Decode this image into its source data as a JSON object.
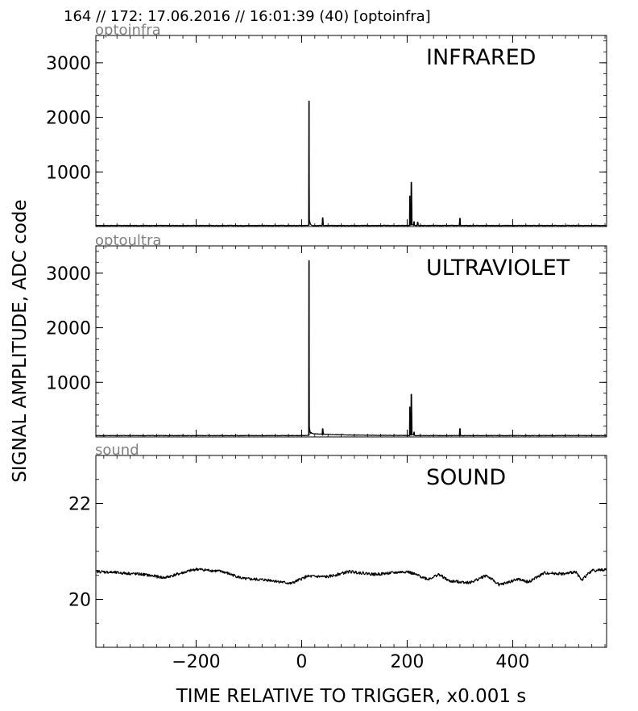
{
  "figure": {
    "title": "164 // 172:   17.06.2016 // 16:01:39 (40)  [optoinfra]",
    "xlabel": "TIME RELATIVE TO TRIGGER,   x0.001 s",
    "ylabel": "SIGNAL AMPLITUDE,  ADC code"
  },
  "chart_data": [
    {
      "type": "line",
      "panel_label": "INFRARED",
      "channel_label": "optoinfra",
      "xlim": [
        -390,
        578
      ],
      "ylim": [
        0,
        3500
      ],
      "x_ticks": [
        -200,
        0,
        200,
        400
      ],
      "x_tick_labels": [
        "",
        "",
        "",
        ""
      ],
      "y_ticks": [
        1000,
        2000,
        3000
      ],
      "y_tick_labels": [
        "1000",
        "2000",
        "3000"
      ],
      "baseline": 20,
      "noise": 4,
      "spikes": [
        {
          "x": 14,
          "peak": 2300,
          "decay": 1.5
        },
        {
          "x": 40,
          "peak": 160,
          "decay": 1.0
        },
        {
          "x": 205,
          "peak": 560,
          "decay": 1.0
        },
        {
          "x": 208,
          "peak": 810,
          "decay": 1.8
        },
        {
          "x": 213,
          "peak": 90,
          "decay": 1.0
        },
        {
          "x": 220,
          "peak": 80,
          "decay": 1.0
        },
        {
          "x": 300,
          "peak": 150,
          "decay": 1.0
        }
      ]
    },
    {
      "type": "line",
      "panel_label": "ULTRAVIOLET",
      "channel_label": "optoultra",
      "xlim": [
        -390,
        578
      ],
      "ylim": [
        0,
        3500
      ],
      "x_ticks": [
        -200,
        0,
        200,
        400
      ],
      "x_tick_labels": [
        "",
        "",
        "",
        ""
      ],
      "y_ticks": [
        1000,
        2000,
        3000
      ],
      "y_tick_labels": [
        "1000",
        "2000",
        "3000"
      ],
      "baseline": 25,
      "noise": 4,
      "spikes": [
        {
          "x": 14,
          "peak": 3230,
          "decay": 1.6
        },
        {
          "x": 40,
          "peak": 150,
          "decay": 1.2
        },
        {
          "x": 205,
          "peak": 550,
          "decay": 1.0
        },
        {
          "x": 208,
          "peak": 780,
          "decay": 1.8
        },
        {
          "x": 213,
          "peak": 90,
          "decay": 1.0
        },
        {
          "x": 300,
          "peak": 150,
          "decay": 1.0
        }
      ],
      "plateau": {
        "from": 18,
        "to": 200,
        "level": 60
      }
    },
    {
      "type": "line",
      "panel_label": "SOUND",
      "channel_label": "sound",
      "xlim": [
        -390,
        578
      ],
      "ylim": [
        19.0,
        23.0
      ],
      "x_ticks": [
        -200,
        0,
        200,
        400
      ],
      "x_tick_labels": [
        "−200",
        "0",
        "200",
        "400"
      ],
      "y_ticks": [
        20,
        22
      ],
      "y_tick_labels": [
        "20",
        "22"
      ],
      "envelope": [
        [
          -385,
          20.58
        ],
        [
          -300,
          20.52
        ],
        [
          -260,
          20.45
        ],
        [
          -200,
          20.63
        ],
        [
          -150,
          20.58
        ],
        [
          -110,
          20.43
        ],
        [
          -60,
          20.4
        ],
        [
          -20,
          20.33
        ],
        [
          10,
          20.48
        ],
        [
          50,
          20.47
        ],
        [
          90,
          20.58
        ],
        [
          140,
          20.52
        ],
        [
          200,
          20.58
        ],
        [
          240,
          20.42
        ],
        [
          260,
          20.52
        ],
        [
          280,
          20.38
        ],
        [
          320,
          20.35
        ],
        [
          350,
          20.5
        ],
        [
          375,
          20.3
        ],
        [
          410,
          20.42
        ],
        [
          430,
          20.36
        ],
        [
          460,
          20.55
        ],
        [
          500,
          20.53
        ],
        [
          520,
          20.58
        ],
        [
          530,
          20.4
        ],
        [
          550,
          20.6
        ],
        [
          576,
          20.62
        ]
      ],
      "noise": 0.03
    }
  ]
}
